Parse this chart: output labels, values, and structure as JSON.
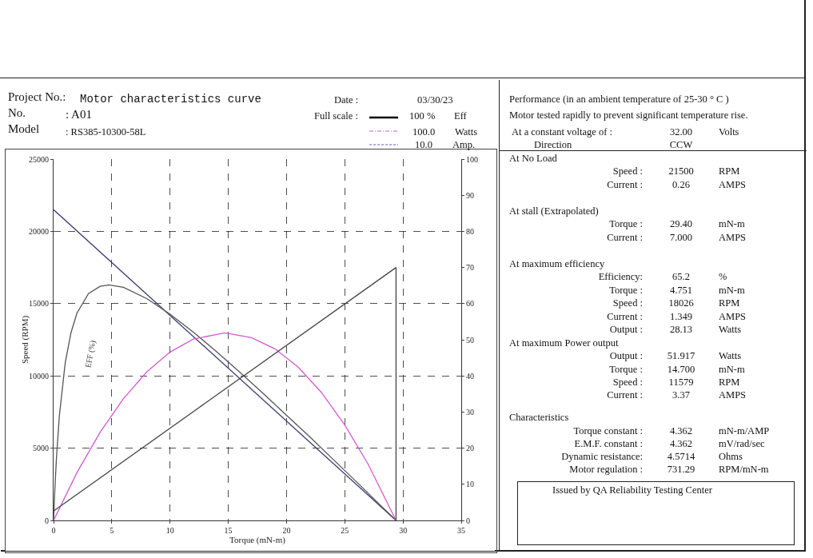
{
  "chart_data": [
    {
      "type": "line",
      "xlabel": "Torque (mN-m)",
      "ylabel": "Speed (RPM)",
      "xlim": [
        0,
        35
      ],
      "xticks": [
        0,
        5,
        10,
        15,
        20,
        25,
        30,
        35
      ],
      "ylim": [
        0,
        25000
      ],
      "yticks": [
        0,
        5000,
        10000,
        15000,
        20000,
        25000
      ],
      "y2lim": [
        0,
        100
      ],
      "y2ticks": [
        0,
        10,
        20,
        30,
        40,
        50,
        60,
        70,
        80,
        90,
        100
      ],
      "grid": true,
      "series": [
        {
          "color": "#3c3c6e",
          "x": [
            0,
            29.4
          ],
          "values": [
            21500,
            0
          ]
        },
        {
          "color": "#555555",
          "axis": "y2",
          "x": [
            0,
            0.1,
            0.25,
            0.5,
            1,
            1.5,
            2,
            3,
            4,
            4.75,
            6,
            8,
            10,
            12,
            14,
            16,
            18,
            20,
            22,
            24,
            26,
            28,
            29.4
          ],
          "values": [
            0,
            7.8,
            17.4,
            29,
            43.6,
            52,
            57.3,
            62.8,
            64.8,
            65.2,
            64.5,
            61.4,
            57.1,
            52.1,
            46.7,
            41,
            35.1,
            29.1,
            23.1,
            16.9,
            10.7,
            4.4,
            0
          ]
        },
        {
          "color": "#d25ad2",
          "axis": "y2",
          "x": [
            0,
            2,
            4,
            6,
            8,
            10,
            12,
            14.7,
            17,
            19,
            21,
            23,
            25,
            27,
            29.4
          ],
          "values": [
            0,
            13.2,
            24.4,
            33.7,
            41.1,
            46.6,
            50.2,
            51.9,
            50.6,
            47.5,
            42.4,
            35.4,
            26.4,
            15.6,
            0
          ]
        },
        {
          "color": "#444444",
          "axis": "y2",
          "x": [
            0,
            29.4,
            29.4
          ],
          "values": [
            2.6,
            70,
            0
          ]
        }
      ],
      "annotations": [
        "Project No.:",
        "Motor characteristics curve",
        "Date :",
        "03/30/23",
        "No.",
        ": A01",
        "Model",
        ": RS385-10300-58L",
        "Full scale :",
        "100 %",
        "Eff",
        "100.0",
        "Watts",
        "10.0",
        "Amp.",
        "EFF (%)"
      ]
    },
    {
      "type": "other",
      "annotations": [
        "Performance (in an ambient temperature of 25-30 ° C )",
        "Motor tested rapidly to prevent significant temperature rise.",
        "At a constant voltage of :",
        "32.00",
        "Volts",
        "Direction",
        "CCW",
        "At No Load",
        "Speed :",
        "21500",
        "RPM",
        "Current :",
        "0.26",
        "AMPS",
        "At stall (Extrapolated)",
        "Torque :",
        "29.40",
        "mN-m",
        "Current :",
        "7.000",
        "AMPS",
        "At maximum efficiency",
        "Efficiency:",
        "65.2",
        "%",
        "Torque :",
        "4.751",
        "mN-m",
        "Speed :",
        "18026",
        "RPM",
        "Current :",
        "1.349",
        "AMPS",
        "Output :",
        "28.13",
        "Watts",
        "At maximum Power output",
        "Output :",
        "51.917",
        "Watts",
        "Torque :",
        "14.700",
        "mN-m",
        "Speed :",
        "11579",
        "RPM",
        "Current :",
        "3.37",
        "AMPS",
        "Characteristics",
        "Torque constant :",
        "4.362",
        "mN-m/AMP",
        "E.M.F. constant :",
        "4.362",
        "mV/rad/sec",
        "Dynamic resistance:",
        "4.5714",
        "Ohms",
        "Motor regulation :",
        "731.29",
        "RPM/mN-m",
        "Issued by QA Reliability Testing Center"
      ]
    }
  ]
}
